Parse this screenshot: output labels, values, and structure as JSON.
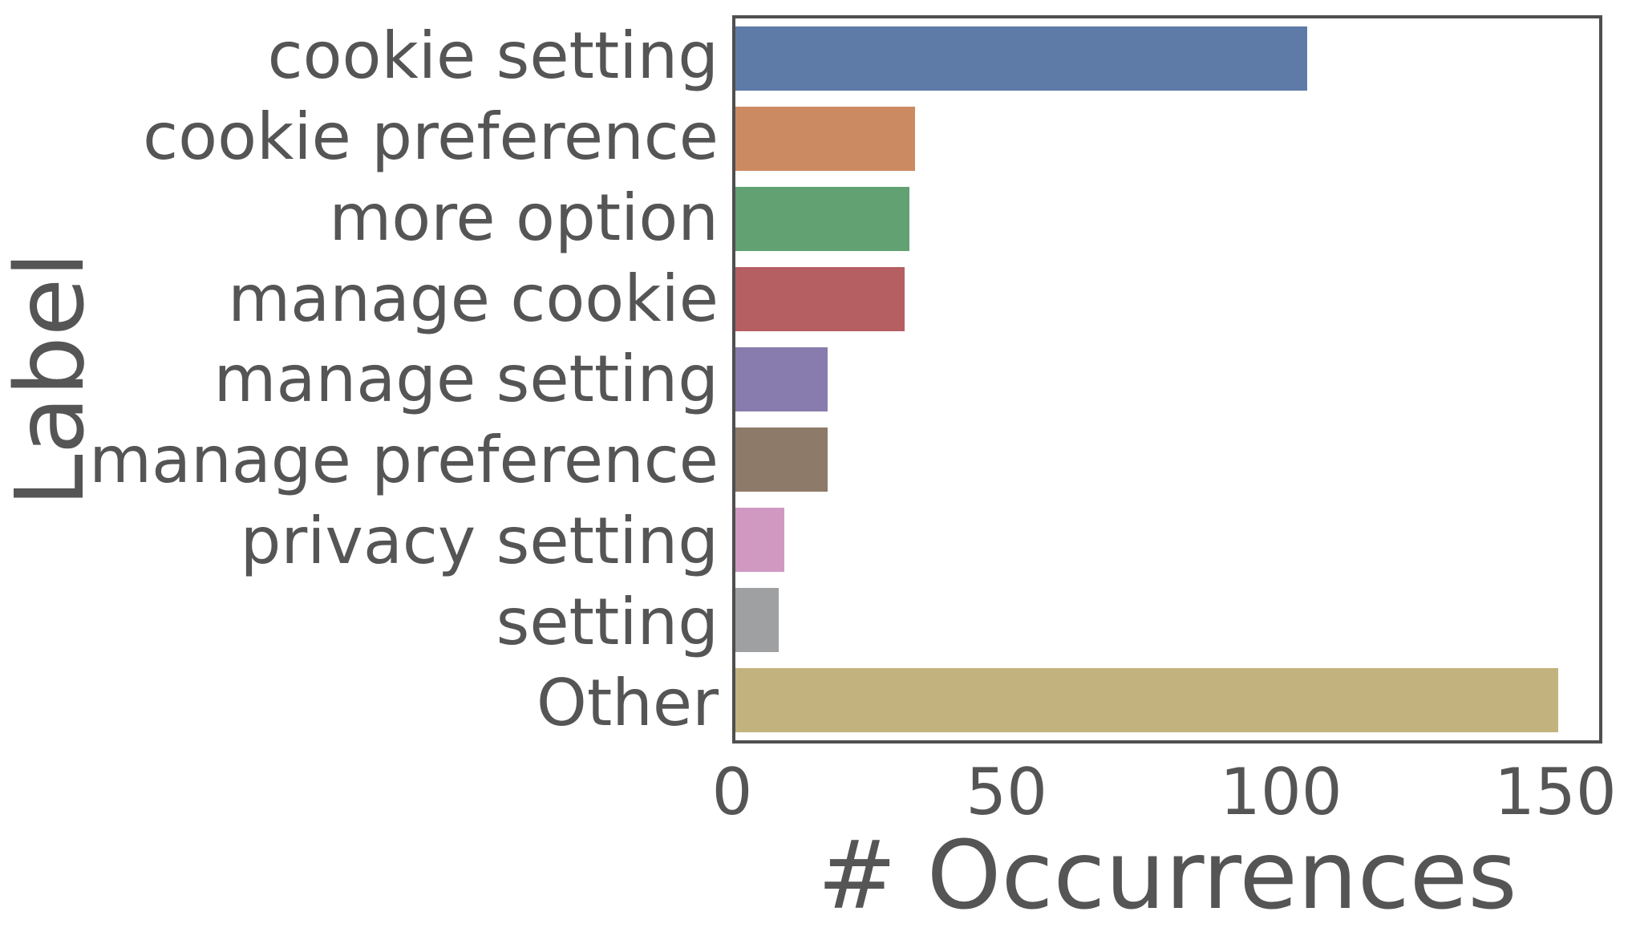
{
  "chart_data": {
    "type": "bar",
    "orientation": "horizontal",
    "title": "",
    "xlabel": "# Occurrences",
    "ylabel": "Label",
    "categories": [
      "cookie setting",
      "cookie preference",
      "more option",
      "manage cookie",
      "manage setting",
      "manage preference",
      "privacy setting",
      "setting",
      "Other"
    ],
    "values": [
      105,
      33,
      32,
      31,
      17,
      17,
      9,
      8,
      151
    ],
    "bar_colors": [
      "#5E7BA8",
      "#CC8A62",
      "#61A172",
      "#B55F63",
      "#877CAD",
      "#8E7A69",
      "#D099C2",
      "#9FA0A2",
      "#C2B37E"
    ],
    "xticks": [
      0,
      50,
      100,
      150
    ],
    "xlim": [
      0,
      158.55
    ],
    "grid": "off",
    "legend": "none",
    "bar_fraction_of_slot": 0.8,
    "text_color": "#555555",
    "spine_color": "#4F4F4F"
  }
}
